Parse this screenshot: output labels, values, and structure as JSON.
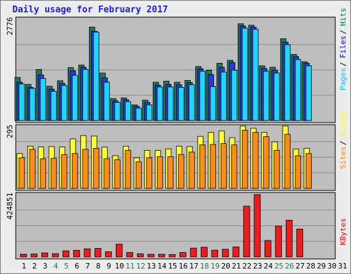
{
  "window_title": "Daily usage for February 2017",
  "chart_data": [
    {
      "type": "bar",
      "panel": "pages-files-hits",
      "max_label": "2776",
      "ylim": [
        0,
        2776
      ],
      "grid": true,
      "legend_placement": "right",
      "legend": [
        {
          "label": "Pages",
          "color": "#00ccff"
        },
        {
          "label": "Files",
          "color": "#0000ff"
        },
        {
          "label": "Hits",
          "color": "#007050"
        }
      ],
      "categories": [
        "1",
        "2",
        "3",
        "4",
        "5",
        "6",
        "7",
        "8",
        "9",
        "10",
        "11",
        "12",
        "13",
        "14",
        "15",
        "16",
        "17",
        "18",
        "19",
        "20",
        "21",
        "22",
        "23",
        "24",
        "25",
        "26",
        "27",
        "28",
        "29",
        "30",
        "31"
      ],
      "series": [
        {
          "name": "Hits",
          "color": "#1f7a5c",
          "values": [
            1180,
            990,
            1400,
            940,
            1090,
            1450,
            1520,
            2560,
            1300,
            600,
            620,
            430,
            560,
            1050,
            1080,
            1050,
            1100,
            1480,
            1380,
            1570,
            1650,
            2650,
            2610,
            1500,
            1460,
            2240,
            1810,
            1610,
            null,
            null,
            null
          ]
        },
        {
          "name": "Files",
          "color": "#2a3ad8",
          "values": [
            1050,
            910,
            1250,
            860,
            1020,
            1360,
            1460,
            2450,
            1170,
            540,
            570,
            390,
            500,
            970,
            990,
            980,
            1040,
            1420,
            1260,
            1460,
            1590,
            2590,
            2560,
            1430,
            1380,
            2150,
            1750,
            1570,
            null,
            null,
            null
          ]
        },
        {
          "name": "Pages",
          "color": "#1ed6ff",
          "values": [
            1000,
            880,
            1150,
            800,
            960,
            1240,
            1400,
            2420,
            1050,
            500,
            520,
            340,
            430,
            920,
            920,
            910,
            980,
            1350,
            930,
            1330,
            1380,
            2530,
            2500,
            1350,
            1300,
            2080,
            1670,
            1500,
            null,
            null,
            null
          ]
        }
      ]
    },
    {
      "type": "bar",
      "panel": "visits-sites",
      "max_label": "295",
      "ylim": [
        0,
        295
      ],
      "grid": true,
      "legend_placement": "right",
      "legend": [
        {
          "label": "Sites",
          "color": "#ff8800"
        },
        {
          "label": "Visits",
          "color": "#ffff00"
        }
      ],
      "categories": [
        "1",
        "2",
        "3",
        "4",
        "5",
        "6",
        "7",
        "8",
        "9",
        "10",
        "11",
        "12",
        "13",
        "14",
        "15",
        "16",
        "17",
        "18",
        "19",
        "20",
        "21",
        "22",
        "23",
        "24",
        "25",
        "26",
        "27",
        "28",
        "29",
        "30",
        "31"
      ],
      "series": [
        {
          "name": "Visits",
          "color": "#ffff33",
          "values": [
            165,
            200,
            196,
            198,
            196,
            234,
            250,
            248,
            195,
            155,
            200,
            145,
            180,
            180,
            187,
            200,
            198,
            246,
            265,
            272,
            240,
            295,
            285,
            265,
            220,
            295,
            186,
            190,
            null,
            null,
            null
          ]
        },
        {
          "name": "Sites",
          "color": "#ff8c1a",
          "values": [
            145,
            185,
            140,
            142,
            160,
            165,
            185,
            190,
            140,
            136,
            180,
            126,
            145,
            150,
            150,
            160,
            172,
            206,
            208,
            212,
            206,
            275,
            265,
            245,
            180,
            256,
            154,
            165,
            null,
            null,
            null
          ]
        }
      ]
    },
    {
      "type": "bar",
      "panel": "kbytes",
      "max_label": "424851",
      "ylim": [
        0,
        424851
      ],
      "grid": true,
      "legend_placement": "right",
      "legend": [
        {
          "label": "KBytes",
          "color": "#ff0000"
        }
      ],
      "categories": [
        "1",
        "2",
        "3",
        "4",
        "5",
        "6",
        "7",
        "8",
        "9",
        "10",
        "11",
        "12",
        "13",
        "14",
        "15",
        "16",
        "17",
        "18",
        "19",
        "20",
        "21",
        "22",
        "23",
        "24",
        "25",
        "26",
        "27",
        "28",
        "29",
        "30",
        "31"
      ],
      "series": [
        {
          "name": "KBytes",
          "color": "#ee1c1c",
          "values": [
            18000,
            20000,
            27000,
            22000,
            41000,
            45000,
            55000,
            58000,
            35000,
            87000,
            30000,
            21000,
            18000,
            18000,
            16000,
            30000,
            60000,
            66000,
            46000,
            52000,
            68000,
            346000,
            424851,
            112000,
            210000,
            250000,
            190000,
            null,
            null,
            null,
            null
          ]
        }
      ]
    }
  ],
  "x_axis": {
    "labels": [
      "1",
      "2",
      "3",
      "4",
      "5",
      "6",
      "7",
      "8",
      "9",
      "10",
      "11",
      "12",
      "13",
      "14",
      "15",
      "16",
      "17",
      "18",
      "19",
      "20",
      "21",
      "22",
      "23",
      "24",
      "25",
      "26",
      "27",
      "28",
      "29",
      "30",
      "31"
    ],
    "weekend_days": [
      4,
      5,
      11,
      12,
      18,
      19,
      25,
      26
    ],
    "weekday_color": "#000000",
    "weekend_color": "#1a7a5a"
  }
}
